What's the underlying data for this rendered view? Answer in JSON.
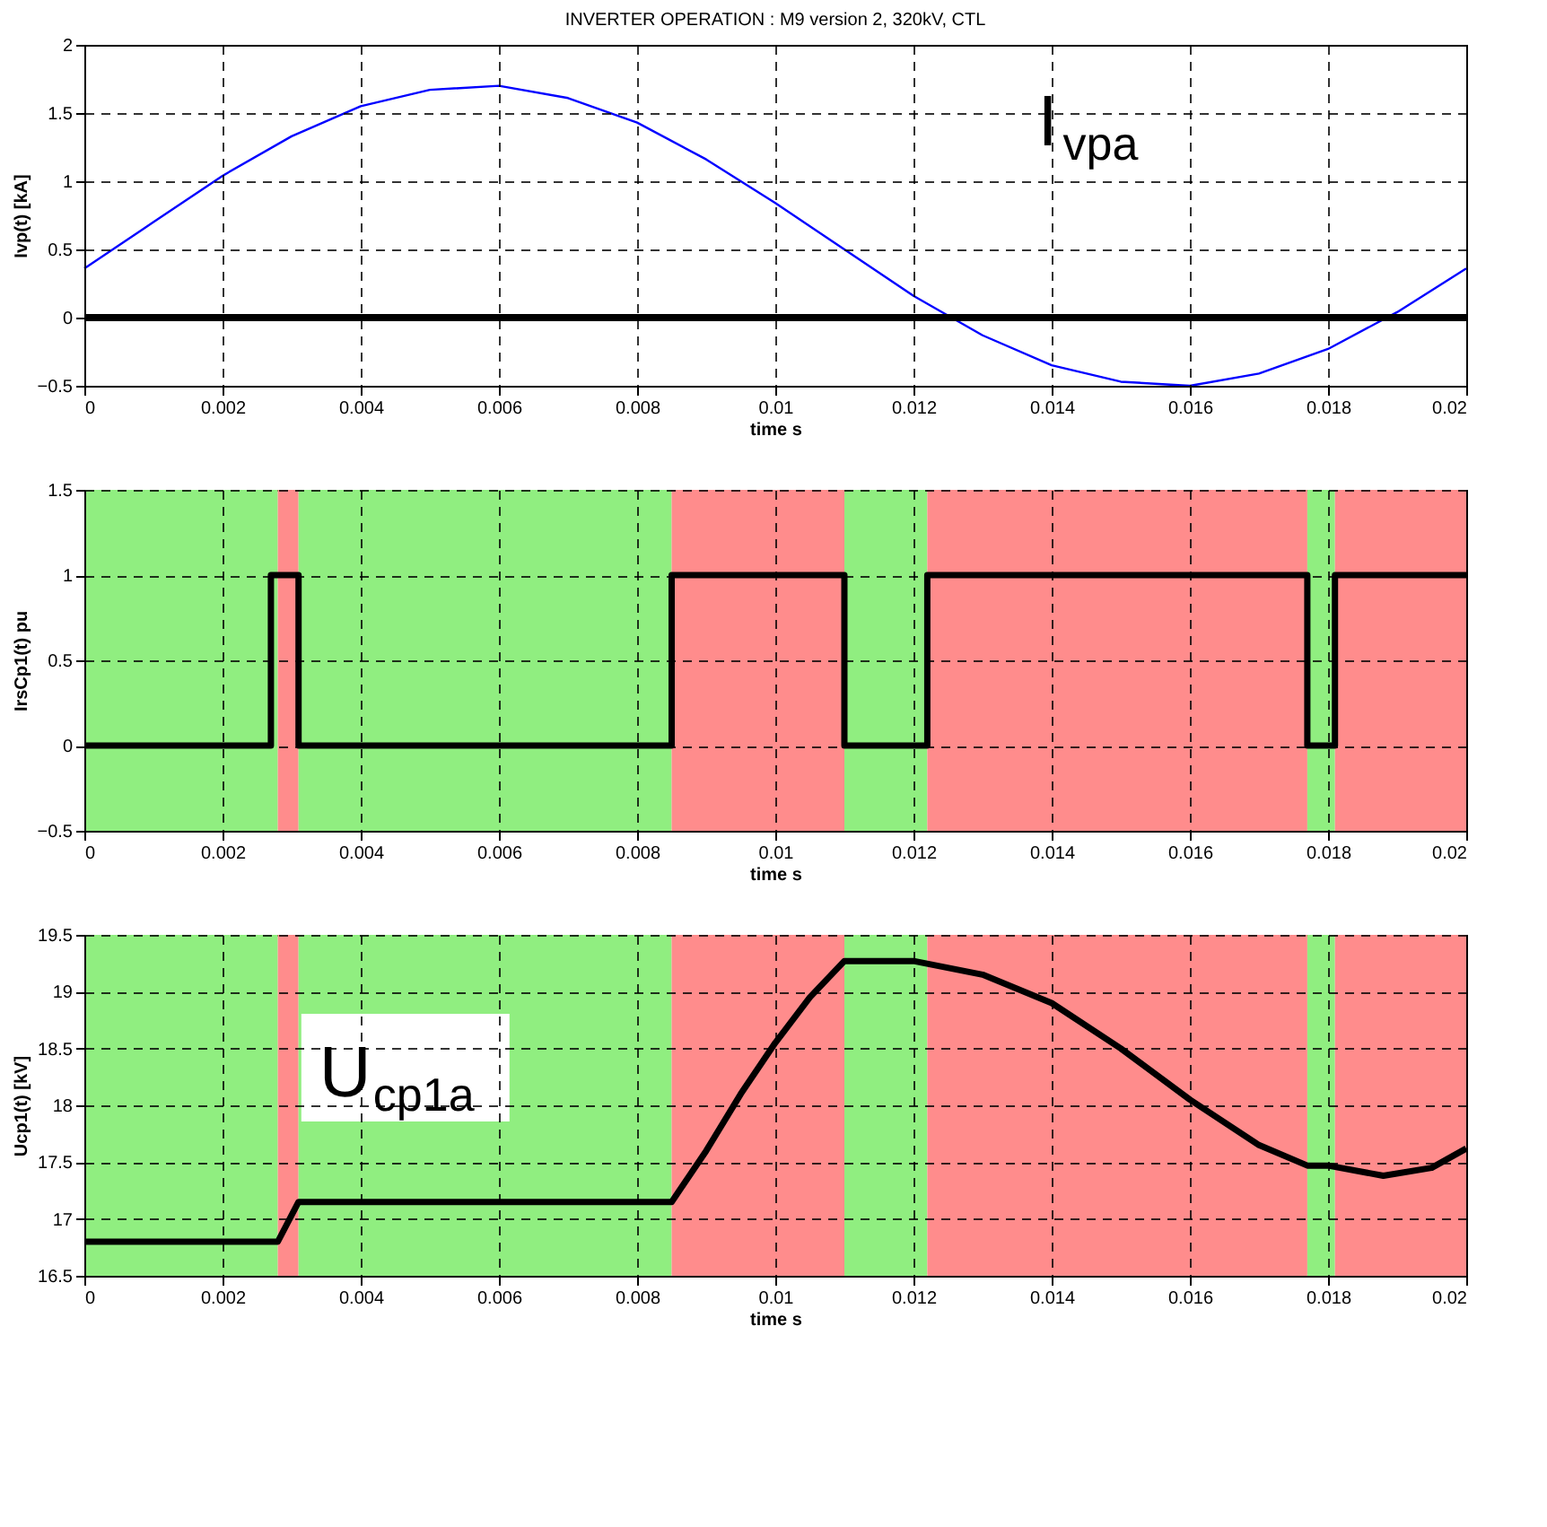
{
  "chart_data": [
    {
      "type": "line",
      "title": "INVERTER OPERATION : M9 version 2, 320kV, CTL",
      "xlabel": "time s",
      "ylabel": "Ivp(t) [kA]",
      "xlim": [
        0,
        0.02
      ],
      "ylim": [
        -0.5,
        2
      ],
      "xticks": [
        0,
        0.002,
        0.004,
        0.006,
        0.008,
        0.01,
        0.012,
        0.014,
        0.016,
        0.018,
        0.02
      ],
      "yticks": [
        -0.5,
        0,
        0.5,
        1,
        1.5,
        2
      ],
      "grid": true,
      "line_style": "solid",
      "marker": "none",
      "annotations": [
        "I$_{vpa}$"
      ],
      "series": [
        {
          "color": "#0000ff",
          "x": [
            0,
            0.001,
            0.002,
            0.003,
            0.004,
            0.005,
            0.006,
            0.007,
            0.008,
            0.009,
            0.01,
            0.011,
            0.012,
            0.013,
            0.014,
            0.015,
            0.016,
            0.017,
            0.018,
            0.019,
            0.02
          ],
          "values": [
            0.36,
            0.7,
            1.04,
            1.33,
            1.55,
            1.67,
            1.7,
            1.61,
            1.43,
            1.16,
            0.84,
            0.5,
            0.16,
            -0.13,
            -0.35,
            -0.47,
            -0.5,
            -0.41,
            -0.23,
            0.04,
            0.36
          ]
        },
        {
          "color": "#000000",
          "x": [
            0,
            0.02
          ],
          "values": [
            0,
            0
          ]
        }
      ]
    },
    {
      "type": "line",
      "xlabel": "time s",
      "ylabel": "IrsCp1(t) pu",
      "xlim": [
        0,
        0.02
      ],
      "ylim": [
        -0.5,
        1.5
      ],
      "xticks": [
        0,
        0.002,
        0.004,
        0.006,
        0.008,
        0.01,
        0.012,
        0.014,
        0.016,
        0.018,
        0.02
      ],
      "yticks": [
        -0.5,
        0,
        0.5,
        1,
        1.5
      ],
      "grid": true,
      "line_style": "solid",
      "marker": "none",
      "bands": [
        {
          "axis": "x",
          "from": 0,
          "to": 0.0028,
          "color": "#90ee80"
        },
        {
          "axis": "x",
          "from": 0.0028,
          "to": 0.0031,
          "color": "#ff8c8c"
        },
        {
          "axis": "x",
          "from": 0.0031,
          "to": 0.0085,
          "color": "#90ee80"
        },
        {
          "axis": "x",
          "from": 0.0085,
          "to": 0.011,
          "color": "#ff8c8c"
        },
        {
          "axis": "x",
          "from": 0.011,
          "to": 0.0122,
          "color": "#90ee80"
        },
        {
          "axis": "x",
          "from": 0.0122,
          "to": 0.0177,
          "color": "#ff8c8c"
        },
        {
          "axis": "x",
          "from": 0.0177,
          "to": 0.0181,
          "color": "#90ee80"
        },
        {
          "axis": "x",
          "from": 0.0181,
          "to": 0.02,
          "color": "#ff8c8c"
        }
      ],
      "series": [
        {
          "color": "#000000",
          "x": [
            0,
            0.0027,
            0.0027,
            0.0031,
            0.0031,
            0.0085,
            0.0085,
            0.011,
            0.011,
            0.0122,
            0.0122,
            0.0177,
            0.0177,
            0.0181,
            0.0181,
            0.02
          ],
          "values": [
            0,
            0,
            1,
            1,
            0,
            0,
            1,
            1,
            0,
            0,
            1,
            1,
            0,
            0,
            1,
            1
          ]
        }
      ]
    },
    {
      "type": "line",
      "xlabel": "time s",
      "ylabel": "Ucp1(t) [kV]",
      "xlim": [
        0,
        0.02
      ],
      "ylim": [
        16.5,
        19.5
      ],
      "xticks": [
        0,
        0.002,
        0.004,
        0.006,
        0.008,
        0.01,
        0.012,
        0.014,
        0.016,
        0.018,
        0.02
      ],
      "yticks": [
        16.5,
        17,
        17.5,
        18,
        18.5,
        19,
        19.5
      ],
      "grid": true,
      "line_style": "solid",
      "marker": "none",
      "annotations": [
        "U$_{cp1a}$"
      ],
      "bands": [
        {
          "axis": "x",
          "from": 0,
          "to": 0.0028,
          "color": "#90ee80"
        },
        {
          "axis": "x",
          "from": 0.0028,
          "to": 0.0031,
          "color": "#ff8c8c"
        },
        {
          "axis": "x",
          "from": 0.0031,
          "to": 0.0085,
          "color": "#90ee80"
        },
        {
          "axis": "x",
          "from": 0.0085,
          "to": 0.011,
          "color": "#ff8c8c"
        },
        {
          "axis": "x",
          "from": 0.011,
          "to": 0.0122,
          "color": "#90ee80"
        },
        {
          "axis": "x",
          "from": 0.0122,
          "to": 0.0177,
          "color": "#ff8c8c"
        },
        {
          "axis": "x",
          "from": 0.0177,
          "to": 0.0181,
          "color": "#90ee80"
        },
        {
          "axis": "x",
          "from": 0.0181,
          "to": 0.02,
          "color": "#ff8c8c"
        }
      ],
      "series": [
        {
          "color": "#000000",
          "x": [
            0,
            0.0028,
            0.0031,
            0.0085,
            0.009,
            0.0095,
            0.01,
            0.0105,
            0.011,
            0.012,
            0.013,
            0.014,
            0.015,
            0.016,
            0.017,
            0.0177,
            0.018,
            0.0188,
            0.0195,
            0.02
          ],
          "values": [
            16.8,
            16.8,
            17.15,
            17.15,
            17.6,
            18.1,
            18.55,
            18.95,
            19.27,
            19.27,
            19.15,
            18.9,
            18.5,
            18.05,
            17.65,
            17.47,
            17.47,
            17.38,
            17.45,
            17.62
          ]
        }
      ]
    }
  ]
}
